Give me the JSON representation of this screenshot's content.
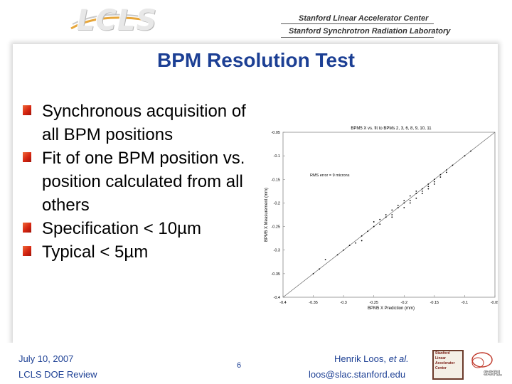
{
  "header": {
    "logo_text": "LCLS",
    "institution_line1": "Stanford Linear Accelerator Center",
    "institution_line2": "Stanford Synchrotron Radiation Laboratory"
  },
  "slide": {
    "title": "BPM Resolution Test",
    "bullets": [
      "Synchronous acquisition of all BPM positions",
      "Fit of one BPM position vs. position calculated from all others",
      "Specification < 10µm",
      "Typical < 5µm"
    ]
  },
  "chart_data": {
    "type": "scatter",
    "title": "BPM5 X vs. fit to BPMs 2, 3, 6, 8, 9, 10, 11",
    "xlabel": "BPM5 X Prediction (mm)",
    "ylabel": "BPM5 X Measurement (mm)",
    "annotation": "RMS error = 9 microns",
    "xlim": [
      -0.4,
      -0.05
    ],
    "ylim": [
      -0.4,
      -0.05
    ],
    "xticks": [
      "-0.4",
      "-0.35",
      "-0.3",
      "-0.25",
      "-0.2",
      "-0.15",
      "-0.1",
      "-0.05"
    ],
    "yticks": [
      "-0.05",
      "-0.1",
      "-0.15",
      "-0.2",
      "-0.25",
      "-0.3",
      "-0.35",
      "-0.4"
    ],
    "fit_line": [
      [
        -0.4,
        -0.4
      ],
      [
        -0.05,
        -0.05
      ]
    ],
    "x": [
      -0.35,
      -0.34,
      -0.33,
      -0.31,
      -0.3,
      -0.29,
      -0.28,
      -0.27,
      -0.27,
      -0.26,
      -0.25,
      -0.25,
      -0.24,
      -0.24,
      -0.23,
      -0.23,
      -0.22,
      -0.22,
      -0.22,
      -0.21,
      -0.21,
      -0.2,
      -0.2,
      -0.2,
      -0.19,
      -0.19,
      -0.19,
      -0.18,
      -0.18,
      -0.18,
      -0.17,
      -0.17,
      -0.17,
      -0.16,
      -0.16,
      -0.16,
      -0.15,
      -0.15,
      -0.15,
      -0.14,
      -0.14,
      -0.13,
      -0.13,
      -0.12,
      -0.1,
      -0.09
    ],
    "y": [
      -0.35,
      -0.34,
      -0.32,
      -0.31,
      -0.3,
      -0.29,
      -0.285,
      -0.27,
      -0.28,
      -0.26,
      -0.25,
      -0.24,
      -0.245,
      -0.235,
      -0.23,
      -0.225,
      -0.225,
      -0.215,
      -0.23,
      -0.21,
      -0.205,
      -0.2,
      -0.21,
      -0.195,
      -0.195,
      -0.185,
      -0.2,
      -0.18,
      -0.19,
      -0.175,
      -0.175,
      -0.17,
      -0.18,
      -0.165,
      -0.16,
      -0.17,
      -0.155,
      -0.15,
      -0.16,
      -0.145,
      -0.14,
      -0.135,
      -0.13,
      -0.12,
      -0.1,
      -0.09
    ]
  },
  "footer": {
    "date": "July 10, 2007",
    "event": "LCLS DOE Review",
    "page_number": "6",
    "author_name": "Henrik Loos, ",
    "author_etal": "et al.",
    "email": "loos@slac.stanford.edu",
    "slac_logo_lines": [
      "Stanford",
      "Linear",
      "Accelerator",
      "Center"
    ],
    "ssrl_logo_text": "SSRL"
  },
  "colors": {
    "title": "#1c3f94",
    "footer_text": "#1c3f94",
    "bullet_mark": "#d52510"
  }
}
